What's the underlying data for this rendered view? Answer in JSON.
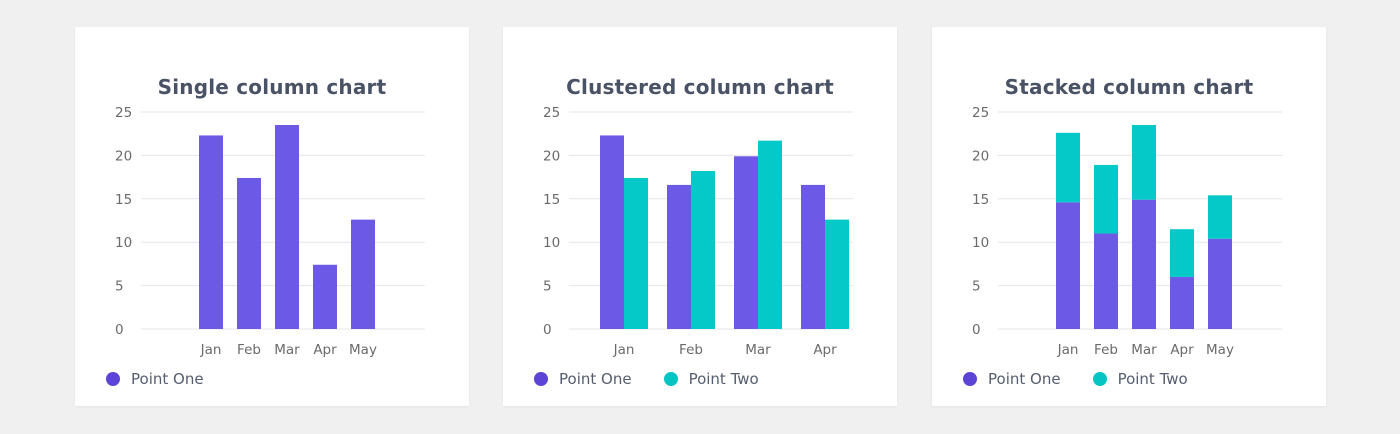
{
  "colors": {
    "point_one": "#6c59e6",
    "point_two": "#05c8c8",
    "grid": "#e6e6e6",
    "axis_text": "#6b6b6b",
    "legend_dot_one": "#5b44d6",
    "legend_dot_two": "#04c4c4"
  },
  "chart_data": [
    {
      "type": "bar",
      "title": "Single column chart",
      "categories": [
        "Jan",
        "Feb",
        "Mar",
        "Apr",
        "May"
      ],
      "series": [
        {
          "name": "Point One",
          "values": [
            22.3,
            17.4,
            23.5,
            7.4,
            12.6
          ]
        }
      ],
      "ylim": [
        0,
        25
      ],
      "yticks": [
        "0",
        "5",
        "10",
        "15",
        "20",
        "25"
      ],
      "grid": true,
      "legend": "bottom-left"
    },
    {
      "type": "bar",
      "title": "Clustered column chart",
      "categories": [
        "Jan",
        "Feb",
        "Mar",
        "Apr"
      ],
      "series": [
        {
          "name": "Point One",
          "values": [
            22.3,
            16.6,
            19.9,
            16.6
          ]
        },
        {
          "name": "Point Two",
          "values": [
            17.4,
            18.2,
            21.7,
            12.6
          ]
        }
      ],
      "ylim": [
        0,
        25
      ],
      "yticks": [
        "0",
        "5",
        "10",
        "15",
        "20",
        "25"
      ],
      "grid": true,
      "legend": "bottom-left"
    },
    {
      "type": "bar",
      "title": "Stacked column chart",
      "stacked": true,
      "categories": [
        "Jan",
        "Feb",
        "Mar",
        "Apr",
        "May"
      ],
      "series": [
        {
          "name": "Point One",
          "values": [
            14.6,
            11.0,
            14.9,
            6.0,
            10.4
          ]
        },
        {
          "name": "Point Two",
          "values": [
            8.0,
            7.9,
            8.6,
            5.5,
            5.0
          ]
        }
      ],
      "ylim": [
        0,
        25
      ],
      "yticks": [
        "0",
        "5",
        "10",
        "15",
        "20",
        "25"
      ],
      "grid": true,
      "legend": "bottom-left"
    }
  ]
}
